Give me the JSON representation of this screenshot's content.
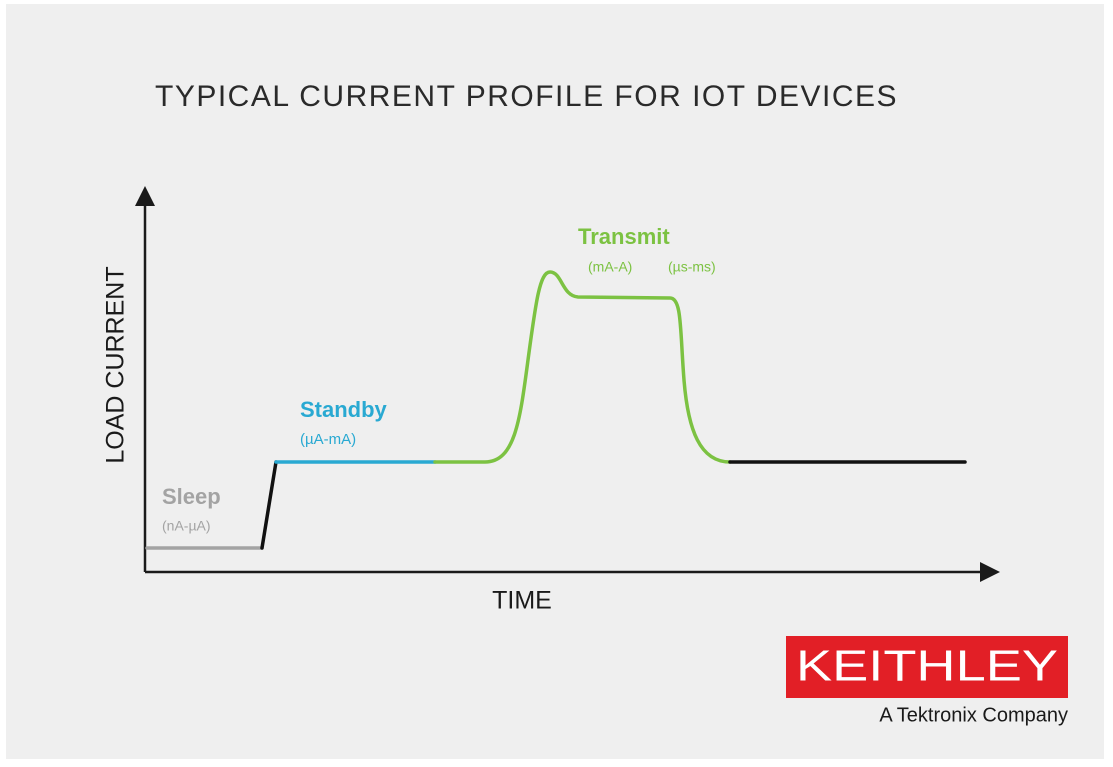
{
  "title": "TYPICAL CURRENT PROFILE FOR IOT DEVICES",
  "axes": {
    "y_label": "LOAD CURRENT",
    "x_label": "TIME"
  },
  "phases": [
    {
      "name": "Sleep",
      "ranges": [
        "(nA-µA)"
      ]
    },
    {
      "name": "Standby",
      "ranges": [
        "(µA-mA)"
      ]
    },
    {
      "name": "Transmit",
      "ranges": [
        "(mA-A)",
        "(µs-ms)"
      ]
    }
  ],
  "logo": {
    "brand": "KEITHLEY",
    "tagline": "A Tektronix Company"
  }
}
